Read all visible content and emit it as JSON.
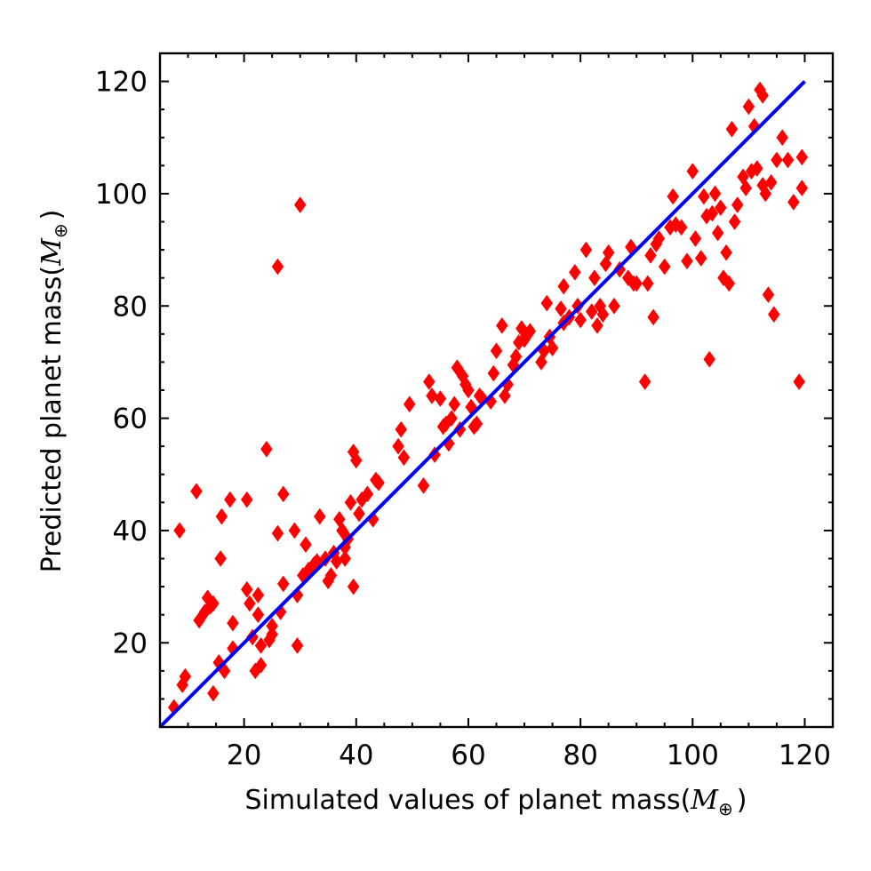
{
  "chart_data": {
    "type": "scatter",
    "xlabel": "Simulated values of planet mass(",
    "ylabel": "Predicted planet mass(",
    "unit_symbol": "M",
    "unit_subscript": "⊕",
    "unit_close": ")",
    "xlim": [
      5,
      125
    ],
    "ylim": [
      5,
      125
    ],
    "xticks": [
      20,
      40,
      60,
      80,
      100,
      120
    ],
    "yticks": [
      20,
      40,
      60,
      80,
      100,
      120
    ],
    "grid": false,
    "marker_color": "#ff0000",
    "line_color": "#0000ff",
    "fit_line": [
      [
        5,
        5
      ],
      [
        120,
        120
      ]
    ],
    "points": [
      [
        7.5,
        8.5
      ],
      [
        8.5,
        40
      ],
      [
        9,
        12.5
      ],
      [
        9.5,
        14
      ],
      [
        11.5,
        47
      ],
      [
        12,
        24
      ],
      [
        13,
        25.5
      ],
      [
        13.5,
        28
      ],
      [
        14,
        26.5
      ],
      [
        14.5,
        27
      ],
      [
        14.5,
        11
      ],
      [
        15.5,
        16.5
      ],
      [
        15.8,
        35
      ],
      [
        16,
        42.5
      ],
      [
        16.5,
        15
      ],
      [
        17.5,
        45.5
      ],
      [
        18,
        19
      ],
      [
        18,
        23.5
      ],
      [
        20.5,
        45.5
      ],
      [
        20.5,
        29.5
      ],
      [
        21,
        27
      ],
      [
        21.5,
        21
      ],
      [
        22,
        15
      ],
      [
        22.5,
        25
      ],
      [
        22.5,
        28.5
      ],
      [
        23,
        19.5
      ],
      [
        23,
        16
      ],
      [
        24,
        54.5
      ],
      [
        24.5,
        20.5
      ],
      [
        25,
        23
      ],
      [
        25,
        21.5
      ],
      [
        26,
        39.5
      ],
      [
        26,
        87
      ],
      [
        26.5,
        25.5
      ],
      [
        27,
        30.5
      ],
      [
        27,
        46.5
      ],
      [
        29,
        40
      ],
      [
        29.5,
        28.5
      ],
      [
        29.5,
        19.5
      ],
      [
        30,
        98
      ],
      [
        30.5,
        32
      ],
      [
        31,
        37.5
      ],
      [
        31.5,
        33
      ],
      [
        32.5,
        34
      ],
      [
        33,
        34.5
      ],
      [
        33.5,
        42.5
      ],
      [
        34.5,
        35
      ],
      [
        35,
        31
      ],
      [
        35.5,
        32
      ],
      [
        36,
        36
      ],
      [
        36.5,
        34.5
      ],
      [
        37,
        42
      ],
      [
        37.5,
        40
      ],
      [
        38,
        35
      ],
      [
        38,
        37
      ],
      [
        38.5,
        38.5
      ],
      [
        39,
        45
      ],
      [
        39.5,
        54
      ],
      [
        40,
        52.5
      ],
      [
        39.5,
        30
      ],
      [
        40.5,
        43
      ],
      [
        41,
        45.5
      ],
      [
        42,
        46.5
      ],
      [
        43,
        42
      ],
      [
        43.5,
        49
      ],
      [
        44,
        48.5
      ],
      [
        47.5,
        55
      ],
      [
        48,
        58
      ],
      [
        48.5,
        53
      ],
      [
        49.5,
        62.5
      ],
      [
        52,
        48
      ],
      [
        53,
        66.5
      ],
      [
        53.5,
        64
      ],
      [
        54,
        53.5
      ],
      [
        55,
        63.5
      ],
      [
        55.5,
        58.5
      ],
      [
        56,
        59
      ],
      [
        56.5,
        55.5
      ],
      [
        57,
        60
      ],
      [
        57.5,
        62.5
      ],
      [
        58,
        69
      ],
      [
        58.5,
        58
      ],
      [
        59,
        67.5
      ],
      [
        59.5,
        66
      ],
      [
        60,
        65
      ],
      [
        60.5,
        62
      ],
      [
        61,
        58.5
      ],
      [
        61.5,
        59
      ],
      [
        62,
        64
      ],
      [
        62.5,
        63.5
      ],
      [
        64,
        63
      ],
      [
        64.5,
        68
      ],
      [
        65,
        72
      ],
      [
        66,
        76.5
      ],
      [
        66.5,
        64
      ],
      [
        67,
        66
      ],
      [
        68,
        69.5
      ],
      [
        68.5,
        71
      ],
      [
        69,
        73.5
      ],
      [
        69.5,
        76
      ],
      [
        70,
        74
      ],
      [
        71,
        75.5
      ],
      [
        73,
        70
      ],
      [
        73.5,
        72
      ],
      [
        74,
        80.5
      ],
      [
        74.5,
        74.5
      ],
      [
        75,
        72.5
      ],
      [
        76.5,
        79.5
      ],
      [
        77,
        83.5
      ],
      [
        77,
        77
      ],
      [
        78,
        78
      ],
      [
        79,
        86
      ],
      [
        79.5,
        80
      ],
      [
        80,
        77.5
      ],
      [
        81,
        90
      ],
      [
        82,
        79
      ],
      [
        82.5,
        85
      ],
      [
        83,
        76.5
      ],
      [
        83.5,
        80
      ],
      [
        84,
        78.5
      ],
      [
        84.5,
        87.5
      ],
      [
        85,
        89.5
      ],
      [
        86,
        80
      ],
      [
        87,
        86.5
      ],
      [
        88.5,
        85
      ],
      [
        89,
        90.5
      ],
      [
        89.5,
        84
      ],
      [
        90,
        84
      ],
      [
        91.5,
        66.5
      ],
      [
        92,
        84
      ],
      [
        92.5,
        89
      ],
      [
        93,
        78
      ],
      [
        93.5,
        91
      ],
      [
        94,
        92
      ],
      [
        95,
        87
      ],
      [
        96,
        94
      ],
      [
        96.5,
        99.5
      ],
      [
        97,
        94.5
      ],
      [
        98,
        94
      ],
      [
        99,
        88
      ],
      [
        100,
        104
      ],
      [
        100.5,
        92
      ],
      [
        101.5,
        88.5
      ],
      [
        102,
        99.5
      ],
      [
        102.5,
        96
      ],
      [
        103,
        70.5
      ],
      [
        103.5,
        96.5
      ],
      [
        104,
        100
      ],
      [
        104.5,
        93
      ],
      [
        105,
        97.5
      ],
      [
        105.5,
        85
      ],
      [
        106,
        89.5
      ],
      [
        106.5,
        84
      ],
      [
        107,
        111.5
      ],
      [
        107.5,
        95
      ],
      [
        108,
        98
      ],
      [
        109,
        103
      ],
      [
        109.5,
        101
      ],
      [
        110,
        115.5
      ],
      [
        110.5,
        104
      ],
      [
        111,
        112
      ],
      [
        111.5,
        104.5
      ],
      [
        112,
        118.5
      ],
      [
        112.5,
        101.5
      ],
      [
        112.5,
        117.5
      ],
      [
        113,
        100
      ],
      [
        113.5,
        82
      ],
      [
        114,
        102
      ],
      [
        114.5,
        78.5
      ],
      [
        115,
        106
      ],
      [
        116,
        110
      ],
      [
        117,
        106
      ],
      [
        118,
        98.5
      ],
      [
        119,
        66.5
      ],
      [
        119.5,
        106.5
      ],
      [
        119.5,
        101
      ]
    ]
  }
}
